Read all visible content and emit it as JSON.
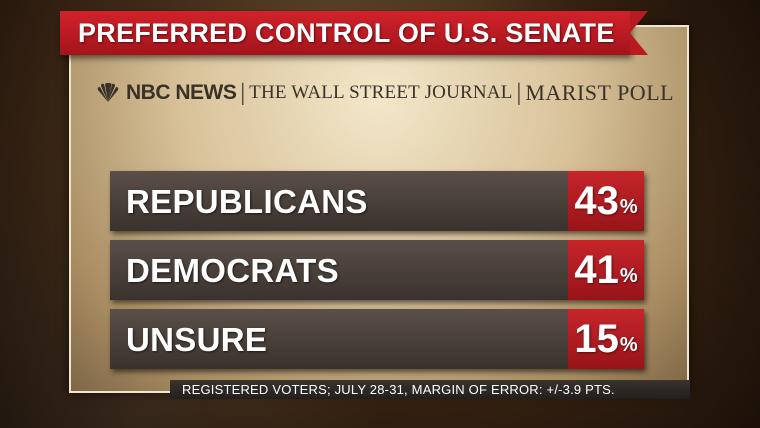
{
  "title": "PREFERRED CONTROL OF U.S. SENATE",
  "sources": {
    "nbc": "NBC NEWS",
    "separator": "|",
    "wsj": "THE WALL STREET JOURNAL",
    "marist": "MARIST POLL"
  },
  "percent_sign": "%",
  "footer": "REGISTERED VOTERS; JULY 28-31, MARGIN OF ERROR: +/-3.9 PTS.",
  "colors": {
    "banner_red": "#c21f26",
    "bar_dark": "#4a413b",
    "value_red": "#c6252b",
    "panel_tan": "#d8c29a"
  },
  "chart_data": {
    "type": "bar",
    "title": "PREFERRED CONTROL OF U.S. SENATE",
    "categories": [
      "REPUBLICANS",
      "DEMOCRATS",
      "UNSURE"
    ],
    "values": [
      43,
      41,
      15
    ],
    "value_labels": [
      "43",
      "41",
      "15"
    ],
    "unit": "%"
  }
}
